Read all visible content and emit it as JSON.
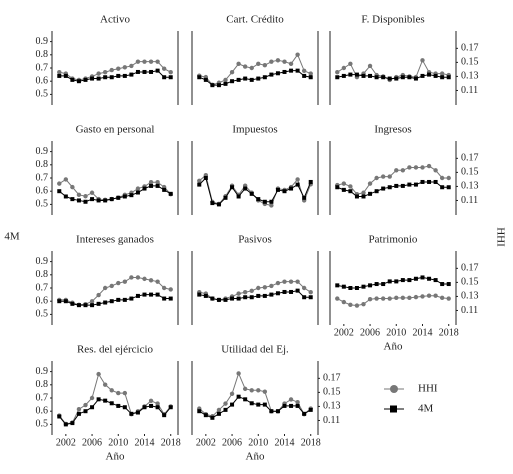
{
  "y_label": "4M",
  "y2_label": "HHI",
  "chart_data": [
    {
      "type": "line",
      "title": "Activo",
      "x": [
        2001,
        2002,
        2003,
        2004,
        2005,
        2006,
        2007,
        2008,
        2009,
        2010,
        2011,
        2012,
        2013,
        2014,
        2015,
        2016,
        2017,
        2018
      ],
      "xlim": [
        2000.5,
        2018.5
      ],
      "ylim": [
        0.45,
        0.95
      ],
      "yticks": [
        0.5,
        0.6,
        0.7,
        0.8,
        0.9
      ],
      "y2lim": [
        0.095,
        0.189
      ],
      "series": [
        {
          "name": "HHI",
          "color": "#777777",
          "axis": "y2",
          "values": [
            0.136,
            0.134,
            0.127,
            0.125,
            0.127,
            0.13,
            0.134,
            0.136,
            0.139,
            0.141,
            0.143,
            0.145,
            0.151,
            0.151,
            0.151,
            0.151,
            0.141,
            0.136
          ]
        },
        {
          "name": "4M",
          "color": "#000000",
          "values": [
            0.64,
            0.64,
            0.61,
            0.6,
            0.61,
            0.62,
            0.62,
            0.63,
            0.63,
            0.64,
            0.64,
            0.65,
            0.67,
            0.67,
            0.67,
            0.68,
            0.63,
            0.63
          ]
        }
      ]
    },
    {
      "type": "line",
      "title": "Cart. Crédito",
      "x": [
        2001,
        2002,
        2003,
        2004,
        2005,
        2006,
        2007,
        2008,
        2009,
        2010,
        2011,
        2012,
        2013,
        2014,
        2015,
        2016,
        2017,
        2018
      ],
      "xlim": [
        2000.5,
        2018.5
      ],
      "ylim": [
        0.45,
        0.95
      ],
      "y2lim": [
        0.095,
        0.189
      ],
      "series": [
        {
          "name": "HHI",
          "color": "#777777",
          "axis": "y2",
          "values": [
            0.131,
            0.129,
            0.118,
            0.121,
            0.125,
            0.136,
            0.148,
            0.144,
            0.142,
            0.148,
            0.146,
            0.151,
            0.153,
            0.151,
            0.148,
            0.161,
            0.138,
            0.134
          ]
        },
        {
          "name": "4M",
          "color": "#000000",
          "values": [
            0.63,
            0.61,
            0.57,
            0.57,
            0.58,
            0.6,
            0.61,
            0.62,
            0.61,
            0.62,
            0.63,
            0.65,
            0.66,
            0.67,
            0.68,
            0.68,
            0.64,
            0.63
          ]
        }
      ]
    },
    {
      "type": "line",
      "title": "F. Disponibles",
      "x": [
        2001,
        2002,
        2003,
        2004,
        2005,
        2006,
        2007,
        2008,
        2009,
        2010,
        2011,
        2012,
        2013,
        2014,
        2015,
        2016,
        2017,
        2018
      ],
      "xlim": [
        2000.5,
        2018.5
      ],
      "ylim": [
        0.45,
        0.95
      ],
      "y2lim": [
        0.095,
        0.189
      ],
      "y2ticks": [
        0.11,
        0.13,
        0.15,
        0.17
      ],
      "series": [
        {
          "name": "HHI",
          "color": "#777777",
          "axis": "y2",
          "values": [
            0.136,
            0.142,
            0.148,
            0.129,
            0.134,
            0.145,
            0.132,
            0.13,
            0.125,
            0.129,
            0.132,
            0.13,
            0.129,
            0.153,
            0.136,
            0.134,
            0.134,
            0.132
          ]
        },
        {
          "name": "4M",
          "color": "#000000",
          "values": [
            0.63,
            0.64,
            0.65,
            0.65,
            0.64,
            0.64,
            0.63,
            0.63,
            0.62,
            0.62,
            0.63,
            0.63,
            0.62,
            0.64,
            0.65,
            0.64,
            0.63,
            0.63
          ]
        }
      ]
    },
    {
      "type": "line",
      "title": "Gasto en personal",
      "x": [
        2001,
        2002,
        2003,
        2004,
        2005,
        2006,
        2007,
        2008,
        2009,
        2010,
        2011,
        2012,
        2013,
        2014,
        2015,
        2016,
        2017,
        2018
      ],
      "xlim": [
        2000.5,
        2018.5
      ],
      "ylim": [
        0.45,
        0.95
      ],
      "yticks": [
        0.5,
        0.6,
        0.7,
        0.8,
        0.9
      ],
      "y2lim": [
        0.095,
        0.189
      ],
      "series": [
        {
          "name": "HHI",
          "color": "#777777",
          "axis": "y2",
          "values": [
            0.134,
            0.14,
            0.129,
            0.118,
            0.116,
            0.121,
            0.112,
            0.111,
            0.112,
            0.114,
            0.118,
            0.121,
            0.127,
            0.13,
            0.136,
            0.136,
            0.129,
            0.119
          ]
        },
        {
          "name": "4M",
          "color": "#000000",
          "values": [
            0.6,
            0.56,
            0.54,
            0.53,
            0.52,
            0.54,
            0.53,
            0.53,
            0.54,
            0.55,
            0.56,
            0.57,
            0.59,
            0.62,
            0.64,
            0.64,
            0.61,
            0.58
          ]
        }
      ]
    },
    {
      "type": "line",
      "title": "Impuestos",
      "x": [
        2001,
        2002,
        2003,
        2004,
        2005,
        2006,
        2007,
        2008,
        2009,
        2010,
        2011,
        2012,
        2013,
        2014,
        2015,
        2016,
        2017,
        2018
      ],
      "xlim": [
        2000.5,
        2018.5
      ],
      "ylim": [
        0.45,
        0.95
      ],
      "y2lim": [
        0.095,
        0.189
      ],
      "series": [
        {
          "name": "HHI",
          "color": "#777777",
          "axis": "y2",
          "values": [
            0.138,
            0.146,
            0.108,
            0.105,
            0.116,
            0.131,
            0.118,
            0.131,
            0.121,
            0.11,
            0.105,
            0.103,
            0.127,
            0.125,
            0.129,
            0.14,
            0.11,
            0.133
          ]
        },
        {
          "name": "4M",
          "color": "#000000",
          "values": [
            0.65,
            0.7,
            0.51,
            0.5,
            0.55,
            0.63,
            0.56,
            0.62,
            0.58,
            0.54,
            0.52,
            0.52,
            0.61,
            0.6,
            0.62,
            0.65,
            0.55,
            0.67
          ]
        }
      ]
    },
    {
      "type": "line",
      "title": "Ingresos",
      "x": [
        2001,
        2002,
        2003,
        2004,
        2005,
        2006,
        2007,
        2008,
        2009,
        2010,
        2011,
        2012,
        2013,
        2014,
        2015,
        2016,
        2017,
        2018
      ],
      "xlim": [
        2000.5,
        2018.5
      ],
      "ylim": [
        0.45,
        0.95
      ],
      "y2lim": [
        0.095,
        0.189
      ],
      "y2ticks": [
        0.11,
        0.13,
        0.15,
        0.17
      ],
      "series": [
        {
          "name": "HHI",
          "color": "#777777",
          "axis": "y2",
          "values": [
            0.132,
            0.134,
            0.13,
            0.119,
            0.121,
            0.134,
            0.142,
            0.144,
            0.144,
            0.153,
            0.153,
            0.157,
            0.157,
            0.157,
            0.159,
            0.153,
            0.142,
            0.142
          ]
        },
        {
          "name": "4M",
          "color": "#000000",
          "values": [
            0.63,
            0.61,
            0.6,
            0.56,
            0.56,
            0.58,
            0.6,
            0.62,
            0.63,
            0.64,
            0.64,
            0.65,
            0.65,
            0.67,
            0.67,
            0.67,
            0.63,
            0.63
          ]
        }
      ]
    },
    {
      "type": "line",
      "title": "Intereses ganados",
      "x": [
        2001,
        2002,
        2003,
        2004,
        2005,
        2006,
        2007,
        2008,
        2009,
        2010,
        2011,
        2012,
        2013,
        2014,
        2015,
        2016,
        2017,
        2018
      ],
      "xlim": [
        2000.5,
        2018.5
      ],
      "ylim": [
        0.45,
        0.95
      ],
      "yticks": [
        0.5,
        0.6,
        0.7,
        0.8,
        0.9
      ],
      "y2lim": [
        0.095,
        0.189
      ],
      "series": [
        {
          "name": "HHI",
          "color": "#777777",
          "axis": "y2",
          "values": [
            0.125,
            0.125,
            0.121,
            0.118,
            0.119,
            0.123,
            0.132,
            0.142,
            0.145,
            0.149,
            0.151,
            0.157,
            0.157,
            0.155,
            0.153,
            0.151,
            0.142,
            0.14
          ]
        },
        {
          "name": "4M",
          "color": "#000000",
          "values": [
            0.6,
            0.6,
            0.58,
            0.57,
            0.57,
            0.57,
            0.58,
            0.59,
            0.6,
            0.61,
            0.61,
            0.62,
            0.64,
            0.65,
            0.65,
            0.65,
            0.62,
            0.62
          ]
        }
      ]
    },
    {
      "type": "line",
      "title": "Pasivos",
      "x": [
        2001,
        2002,
        2003,
        2004,
        2005,
        2006,
        2007,
        2008,
        2009,
        2010,
        2011,
        2012,
        2013,
        2014,
        2015,
        2016,
        2017,
        2018
      ],
      "xlim": [
        2000.5,
        2018.5
      ],
      "ylim": [
        0.45,
        0.95
      ],
      "y2lim": [
        0.095,
        0.189
      ],
      "series": [
        {
          "name": "HHI",
          "color": "#777777",
          "axis": "y2",
          "values": [
            0.136,
            0.134,
            0.127,
            0.125,
            0.127,
            0.13,
            0.134,
            0.136,
            0.138,
            0.142,
            0.143,
            0.145,
            0.149,
            0.151,
            0.151,
            0.151,
            0.142,
            0.136
          ]
        },
        {
          "name": "4M",
          "color": "#000000",
          "values": [
            0.65,
            0.64,
            0.62,
            0.61,
            0.61,
            0.62,
            0.62,
            0.63,
            0.63,
            0.64,
            0.64,
            0.65,
            0.66,
            0.67,
            0.67,
            0.68,
            0.63,
            0.63
          ]
        }
      ]
    },
    {
      "type": "line",
      "title": "Patrimonio",
      "x": [
        2001,
        2002,
        2003,
        2004,
        2005,
        2006,
        2007,
        2008,
        2009,
        2010,
        2011,
        2012,
        2013,
        2014,
        2015,
        2016,
        2017,
        2018
      ],
      "xlim": [
        2000.5,
        2018.5
      ],
      "xticks": [
        2002,
        2006,
        2010,
        2014,
        2018
      ],
      "xlabel": "Año",
      "ylim": [
        0.45,
        0.95
      ],
      "y2lim": [
        0.095,
        0.189
      ],
      "y2ticks": [
        0.11,
        0.13,
        0.15,
        0.17
      ],
      "series": [
        {
          "name": "HHI",
          "color": "#777777",
          "axis": "y2",
          "values": [
            0.127,
            0.122,
            0.118,
            0.117,
            0.119,
            0.126,
            0.127,
            0.127,
            0.127,
            0.128,
            0.128,
            0.128,
            0.129,
            0.13,
            0.131,
            0.131,
            0.128,
            0.127
          ]
        },
        {
          "name": "4M",
          "color": "#000000",
          "values": [
            0.72,
            0.71,
            0.7,
            0.7,
            0.71,
            0.72,
            0.73,
            0.73,
            0.75,
            0.75,
            0.76,
            0.76,
            0.77,
            0.78,
            0.77,
            0.76,
            0.73,
            0.73
          ]
        }
      ]
    },
    {
      "type": "line",
      "title": "Res. del ejércicio",
      "x": [
        2001,
        2002,
        2003,
        2004,
        2005,
        2006,
        2007,
        2008,
        2009,
        2010,
        2011,
        2012,
        2013,
        2014,
        2015,
        2016,
        2017,
        2018
      ],
      "xlim": [
        2000.5,
        2018.5
      ],
      "xticks": [
        2002,
        2006,
        2010,
        2014,
        2018
      ],
      "xlabel": "Año",
      "ylim": [
        0.45,
        0.95
      ],
      "yticks": [
        0.5,
        0.6,
        0.7,
        0.8,
        0.9
      ],
      "y2lim": [
        0.095,
        0.189
      ],
      "series": [
        {
          "name": "HHI",
          "color": "#777777",
          "axis": "y2",
          "values": [
            0.117,
            0.105,
            0.107,
            0.126,
            0.132,
            0.142,
            0.176,
            0.161,
            0.153,
            0.149,
            0.149,
            0.119,
            0.123,
            0.13,
            0.138,
            0.134,
            0.119,
            0.13
          ]
        },
        {
          "name": "4M",
          "color": "#000000",
          "values": [
            0.56,
            0.5,
            0.51,
            0.58,
            0.6,
            0.63,
            0.69,
            0.68,
            0.66,
            0.64,
            0.63,
            0.58,
            0.59,
            0.63,
            0.64,
            0.63,
            0.57,
            0.63
          ]
        }
      ]
    },
    {
      "type": "line",
      "title": "Utilidad del Ej.",
      "x": [
        2001,
        2002,
        2003,
        2004,
        2005,
        2006,
        2007,
        2008,
        2009,
        2010,
        2011,
        2012,
        2013,
        2014,
        2015,
        2016,
        2017,
        2018
      ],
      "xlim": [
        2000.5,
        2018.5
      ],
      "xticks": [
        2002,
        2006,
        2010,
        2014,
        2018
      ],
      "xlabel": "Año",
      "ylim": [
        0.45,
        0.95
      ],
      "y2lim": [
        0.095,
        0.189
      ],
      "y2ticks": [
        0.11,
        0.13,
        0.15,
        0.17
      ],
      "series": [
        {
          "name": "HHI",
          "color": "#777777",
          "axis": "y2",
          "values": [
            0.127,
            0.119,
            0.116,
            0.125,
            0.134,
            0.148,
            0.177,
            0.155,
            0.153,
            0.153,
            0.151,
            0.123,
            0.123,
            0.134,
            0.14,
            0.136,
            0.119,
            0.127
          ]
        },
        {
          "name": "4M",
          "color": "#000000",
          "values": [
            0.6,
            0.57,
            0.55,
            0.58,
            0.61,
            0.65,
            0.71,
            0.69,
            0.66,
            0.65,
            0.65,
            0.6,
            0.6,
            0.64,
            0.64,
            0.64,
            0.58,
            0.61
          ]
        }
      ]
    }
  ]
}
